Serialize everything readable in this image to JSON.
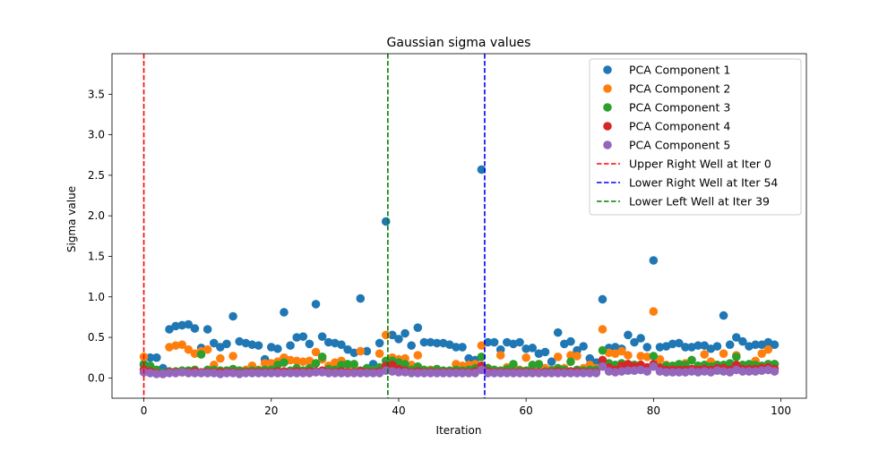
{
  "chart_data": {
    "type": "scatter",
    "title": "Gaussian sigma values",
    "xlabel": "Iteration",
    "ylabel": "Sigma value",
    "xlim": [
      -5,
      104
    ],
    "ylim": [
      -0.25,
      4.0
    ],
    "xticks": [
      0,
      20,
      40,
      60,
      80,
      100
    ],
    "yticks": [
      0.0,
      0.5,
      1.0,
      1.5,
      2.0,
      2.5,
      3.0,
      3.5
    ],
    "ytick_labels": [
      "0.0",
      "0.5",
      "1.0",
      "1.5",
      "2.0",
      "2.5",
      "3.0",
      "3.5"
    ],
    "grid": false,
    "legend_position": "top-right",
    "x": [
      0,
      1,
      2,
      3,
      4,
      5,
      6,
      7,
      8,
      9,
      10,
      11,
      12,
      13,
      14,
      15,
      16,
      17,
      18,
      19,
      20,
      21,
      22,
      23,
      24,
      25,
      26,
      27,
      28,
      29,
      30,
      31,
      32,
      33,
      34,
      35,
      36,
      37,
      38,
      39,
      40,
      41,
      42,
      43,
      44,
      45,
      46,
      47,
      48,
      49,
      50,
      51,
      52,
      53,
      54,
      55,
      56,
      57,
      58,
      59,
      60,
      61,
      62,
      63,
      64,
      65,
      66,
      67,
      68,
      69,
      70,
      71,
      72,
      73,
      74,
      75,
      76,
      77,
      78,
      79,
      80,
      81,
      82,
      83,
      84,
      85,
      86,
      87,
      88,
      89,
      90,
      91,
      92,
      93,
      94,
      95,
      96,
      97,
      98,
      99
    ],
    "series": [
      {
        "name": "PCA Component 1",
        "color": "#1f77b4",
        "values": [
          0.17,
          0.25,
          0.25,
          0.12,
          0.6,
          0.64,
          0.65,
          0.66,
          0.61,
          0.37,
          0.6,
          0.43,
          0.38,
          0.42,
          0.76,
          0.45,
          0.43,
          0.41,
          0.4,
          0.23,
          0.38,
          0.36,
          0.81,
          0.4,
          0.5,
          0.51,
          0.42,
          0.91,
          0.51,
          0.44,
          0.43,
          0.41,
          0.35,
          0.31,
          0.98,
          0.33,
          0.17,
          0.43,
          1.93,
          0.53,
          0.48,
          0.55,
          0.4,
          0.62,
          0.44,
          0.44,
          0.43,
          0.43,
          0.41,
          0.38,
          0.38,
          0.24,
          0.22,
          2.57,
          0.44,
          0.44,
          0.35,
          0.44,
          0.42,
          0.44,
          0.36,
          0.37,
          0.3,
          0.32,
          0.2,
          0.56,
          0.42,
          0.45,
          0.34,
          0.39,
          0.24,
          0.19,
          0.97,
          0.37,
          0.38,
          0.36,
          0.53,
          0.44,
          0.49,
          0.38,
          1.45,
          0.38,
          0.39,
          0.42,
          0.43,
          0.38,
          0.38,
          0.4,
          0.4,
          0.36,
          0.39,
          0.77,
          0.41,
          0.5,
          0.45,
          0.39,
          0.41,
          0.41,
          0.44,
          0.41
        ]
      },
      {
        "name": "PCA Component 2",
        "color": "#ff7f0e",
        "values": [
          0.26,
          0.1,
          0.07,
          0.05,
          0.38,
          0.4,
          0.41,
          0.35,
          0.3,
          0.33,
          0.35,
          0.16,
          0.24,
          0.09,
          0.27,
          0.09,
          0.1,
          0.15,
          0.1,
          0.18,
          0.18,
          0.2,
          0.25,
          0.22,
          0.21,
          0.2,
          0.21,
          0.32,
          0.23,
          0.15,
          0.19,
          0.21,
          0.15,
          0.12,
          0.33,
          0.1,
          0.09,
          0.3,
          0.53,
          0.25,
          0.23,
          0.24,
          0.16,
          0.28,
          0.09,
          0.1,
          0.1,
          0.08,
          0.08,
          0.17,
          0.15,
          0.16,
          0.17,
          0.4,
          0.12,
          0.1,
          0.28,
          0.13,
          0.16,
          0.1,
          0.25,
          0.14,
          0.1,
          0.12,
          0.1,
          0.26,
          0.12,
          0.28,
          0.27,
          0.12,
          0.16,
          0.12,
          0.6,
          0.31,
          0.3,
          0.33,
          0.28,
          0.16,
          0.27,
          0.26,
          0.82,
          0.23,
          0.16,
          0.14,
          0.15,
          0.18,
          0.22,
          0.15,
          0.29,
          0.2,
          0.16,
          0.3,
          0.12,
          0.28,
          0.16,
          0.16,
          0.21,
          0.3,
          0.35,
          0.17
        ]
      },
      {
        "name": "PCA Component 3",
        "color": "#2ca02c",
        "values": [
          0.16,
          0.15,
          0.1,
          0.06,
          0.08,
          0.08,
          0.09,
          0.09,
          0.1,
          0.29,
          0.1,
          0.1,
          0.09,
          0.09,
          0.11,
          0.09,
          0.08,
          0.09,
          0.09,
          0.1,
          0.1,
          0.16,
          0.19,
          0.09,
          0.12,
          0.09,
          0.12,
          0.18,
          0.26,
          0.11,
          0.1,
          0.16,
          0.17,
          0.17,
          0.09,
          0.12,
          0.1,
          0.13,
          0.21,
          0.21,
          0.19,
          0.17,
          0.1,
          0.14,
          0.1,
          0.09,
          0.11,
          0.09,
          0.09,
          0.1,
          0.09,
          0.1,
          0.12,
          0.26,
          0.12,
          0.1,
          0.09,
          0.11,
          0.17,
          0.09,
          0.09,
          0.16,
          0.17,
          0.08,
          0.09,
          0.12,
          0.1,
          0.2,
          0.1,
          0.09,
          0.1,
          0.1,
          0.34,
          0.18,
          0.16,
          0.18,
          0.17,
          0.16,
          0.16,
          0.12,
          0.27,
          0.13,
          0.15,
          0.15,
          0.17,
          0.16,
          0.22,
          0.15,
          0.16,
          0.14,
          0.16,
          0.16,
          0.18,
          0.26,
          0.16,
          0.17,
          0.16,
          0.15,
          0.17,
          0.17
        ]
      },
      {
        "name": "PCA Component 4",
        "color": "#d62728",
        "values": [
          0.1,
          0.08,
          0.06,
          0.05,
          0.07,
          0.07,
          0.07,
          0.07,
          0.08,
          0.07,
          0.07,
          0.07,
          0.07,
          0.07,
          0.07,
          0.06,
          0.07,
          0.07,
          0.07,
          0.07,
          0.07,
          0.08,
          0.08,
          0.07,
          0.08,
          0.07,
          0.08,
          0.08,
          0.09,
          0.07,
          0.07,
          0.08,
          0.07,
          0.07,
          0.08,
          0.07,
          0.07,
          0.08,
          0.15,
          0.16,
          0.11,
          0.09,
          0.07,
          0.08,
          0.07,
          0.07,
          0.07,
          0.07,
          0.07,
          0.07,
          0.07,
          0.07,
          0.08,
          0.15,
          0.08,
          0.07,
          0.07,
          0.07,
          0.07,
          0.07,
          0.07,
          0.07,
          0.07,
          0.07,
          0.07,
          0.08,
          0.07,
          0.08,
          0.08,
          0.07,
          0.07,
          0.07,
          0.22,
          0.13,
          0.1,
          0.15,
          0.17,
          0.14,
          0.16,
          0.13,
          0.17,
          0.12,
          0.1,
          0.1,
          0.1,
          0.1,
          0.11,
          0.1,
          0.11,
          0.1,
          0.12,
          0.12,
          0.1,
          0.16,
          0.11,
          0.11,
          0.11,
          0.12,
          0.13,
          0.11
        ]
      },
      {
        "name": "PCA Component 5",
        "color": "#9467bd",
        "values": [
          0.07,
          0.06,
          0.05,
          0.05,
          0.06,
          0.06,
          0.07,
          0.06,
          0.06,
          0.06,
          0.06,
          0.06,
          0.05,
          0.06,
          0.06,
          0.05,
          0.06,
          0.06,
          0.06,
          0.06,
          0.06,
          0.06,
          0.06,
          0.06,
          0.06,
          0.06,
          0.06,
          0.07,
          0.07,
          0.06,
          0.06,
          0.06,
          0.06,
          0.06,
          0.06,
          0.06,
          0.06,
          0.06,
          0.09,
          0.08,
          0.07,
          0.07,
          0.06,
          0.06,
          0.06,
          0.06,
          0.06,
          0.06,
          0.06,
          0.06,
          0.06,
          0.06,
          0.06,
          0.1,
          0.06,
          0.06,
          0.06,
          0.06,
          0.06,
          0.06,
          0.06,
          0.06,
          0.06,
          0.06,
          0.06,
          0.06,
          0.06,
          0.06,
          0.06,
          0.06,
          0.06,
          0.06,
          0.14,
          0.08,
          0.07,
          0.08,
          0.09,
          0.09,
          0.1,
          0.08,
          0.14,
          0.08,
          0.07,
          0.07,
          0.07,
          0.07,
          0.08,
          0.07,
          0.08,
          0.07,
          0.09,
          0.08,
          0.07,
          0.1,
          0.08,
          0.08,
          0.08,
          0.09,
          0.1,
          0.08
        ]
      }
    ],
    "vlines": [
      {
        "label": "Upper Right Well at Iter 0",
        "x": 0,
        "color": "#ff0000"
      },
      {
        "label": "Lower Right Well at Iter 54",
        "x": 53.5,
        "color": "#0000ff"
      },
      {
        "label": "Lower Left Well at Iter 39",
        "x": 38.3,
        "color": "#008000"
      }
    ]
  }
}
